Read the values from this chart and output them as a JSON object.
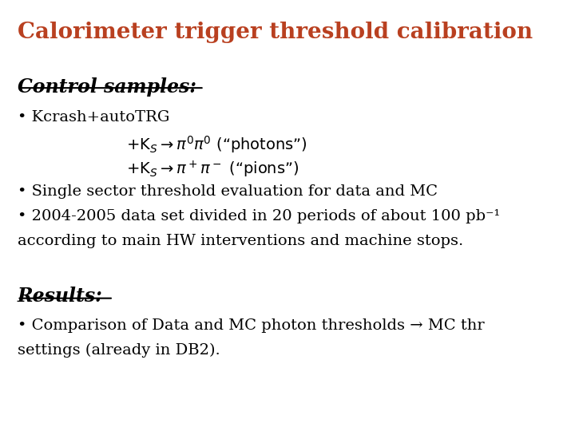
{
  "title": "Calorimeter trigger threshold calibration",
  "title_color": "#b94020",
  "bg_color": "#ffffff",
  "font_family": "serif",
  "control_samples_label": "Control samples:",
  "bullet1_line1": "• Kcrash+autoTRG",
  "bullet2": "• Single sector threshold evaluation for data and MC",
  "bullet3_line1": "• 2004-2005 data set divided in 20 periods of about 100 pb⁻¹",
  "bullet3_line2": "according to main HW interventions and machine stops.",
  "results_label": "Results:",
  "results_bullet_line1": "• Comparison of Data and MC photon thresholds → MC thr",
  "results_bullet_line2": "settings (already in DB2)."
}
